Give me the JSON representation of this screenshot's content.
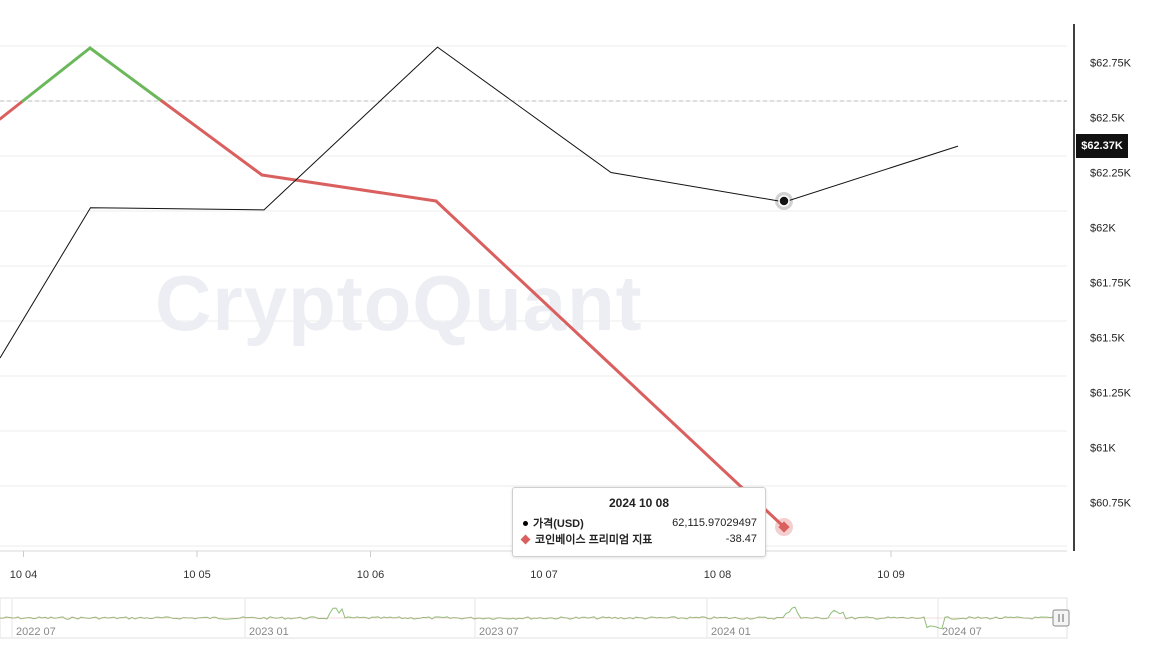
{
  "watermark": "CryptoQuant",
  "colors": {
    "price_line": "#111111",
    "premium_positive": "#6ab85a",
    "premium_negative": "#d9605f",
    "grid": "#ececec",
    "axis": "#000000"
  },
  "tooltip": {
    "date": "2024 10 08",
    "rows": [
      {
        "name": "가격(USD)",
        "value": "62,115.97029497"
      },
      {
        "name": "코인베이스 프리미엄 지표",
        "value": "-38.47"
      }
    ]
  },
  "price_tag": "$62.37K",
  "chart_data": [
    {
      "type": "line",
      "x_ticks": [
        "10 04",
        "10 05",
        "10 06",
        "10 07",
        "10 08",
        "10 09"
      ],
      "y_ticks": [
        "$60.75K",
        "$61K",
        "$61.25K",
        "$61.5K",
        "$61.75K",
        "$62K",
        "$62.25K",
        "$62.5K",
        "$62.75K"
      ],
      "ylim": [
        60500,
        62900
      ],
      "grid": true,
      "series": [
        {
          "name": "가격(USD)",
          "axis": "right",
          "x": [
            "2024-10-03",
            "2024-10-04",
            "2024-10-05",
            "2024-10-06",
            "2024-10-07",
            "2024-10-08",
            "2024-10-09"
          ],
          "values": [
            61370,
            62090,
            62080,
            62820,
            62250,
            62116,
            62370
          ]
        },
        {
          "name": "코인베이스 프리미엄 지표",
          "axis": "left-hidden",
          "x": [
            "2024-10-03",
            "2024-10-04",
            "2024-10-05",
            "2024-10-06",
            "2024-10-07",
            "2024-10-08"
          ],
          "values": [
            12.0,
            30.0,
            -2.0,
            -8.0,
            -26.0,
            -38.47
          ],
          "positive_threshold": 0
        }
      ]
    },
    {
      "type": "line",
      "role": "navigator",
      "x_ticks": [
        "2022 07",
        "2023 01",
        "2023 07",
        "2024 01",
        "2024 07"
      ]
    }
  ]
}
